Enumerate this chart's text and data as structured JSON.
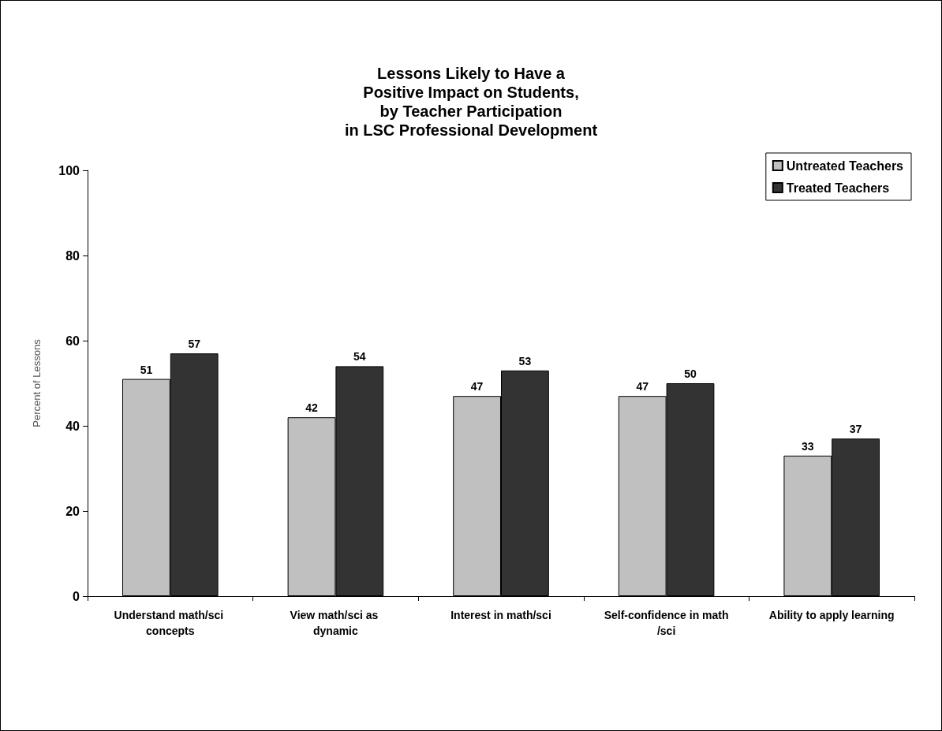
{
  "chart_data": {
    "type": "bar",
    "title": "Lessons Likely to Have a\nPositive Impact on Students,\nby Teacher Participation\nin LSC Professional Development",
    "ylabel": "Percent of Lessons",
    "categories": [
      "Understand math/sci concepts",
      "View math/sci as dynamic",
      "Interest in math/sci",
      "Self-confidence in math/sci",
      "Ability to apply learning"
    ],
    "series": [
      {
        "name": "Untreated Teachers",
        "color": "#c0c0c0",
        "values": [
          51,
          42,
          47,
          47,
          33
        ]
      },
      {
        "name": "Treated Teachers",
        "color": "#333333",
        "values": [
          57,
          54,
          53,
          50,
          37
        ]
      }
    ],
    "ylim": [
      0,
      100
    ],
    "yticks": [
      0,
      20,
      40,
      60,
      80,
      100
    ],
    "grid": false,
    "legend": "top right",
    "data_labels": true
  }
}
